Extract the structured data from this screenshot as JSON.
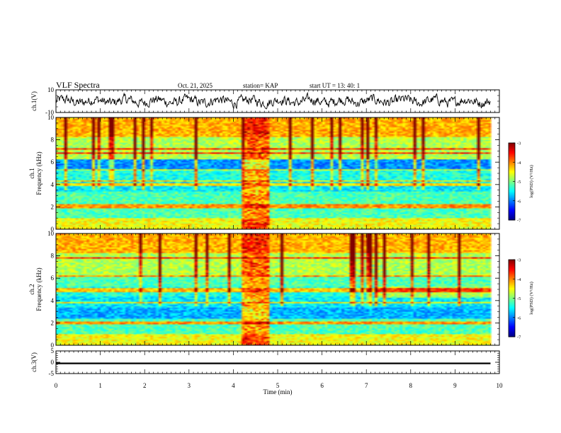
{
  "header": {
    "title": "VLF Spectra",
    "date": "Oct. 21, 2025",
    "station": "station= KAP",
    "start_ut": "start  UT  =   13: 40: 1"
  },
  "chart_data": [
    {
      "id": "ch1-waveform",
      "type": "line",
      "ylabel": "ch.1(V)",
      "ylim": [
        -10,
        10
      ],
      "yticks": [
        10,
        -10
      ],
      "xlim": [
        0,
        10
      ],
      "series": [
        {
          "name": "ch.1 waveform",
          "amplitude_range_V": [
            -8,
            8
          ]
        }
      ]
    },
    {
      "id": "ch1-spectrogram",
      "type": "heatmap",
      "ylabel_channel": "ch.1",
      "ylabel": "Frequency (kHz)",
      "ylim": [
        0,
        10
      ],
      "yticks": [
        0,
        2,
        4,
        6,
        8,
        10
      ],
      "xlim": [
        0,
        10
      ],
      "data_extent_min": 9.8,
      "burst_interval_min": [
        4.2,
        4.8
      ],
      "notable_lines_kHz": [
        2.0,
        2.2,
        4.0,
        4.3,
        5.3,
        6.8,
        7.2
      ],
      "colorbar": {
        "label": "log(PSD) (V²/Hz)",
        "range": [
          -7,
          -3
        ],
        "ticks": [
          -3,
          -4,
          -5,
          -6,
          -7
        ]
      }
    },
    {
      "id": "ch2-spectrogram",
      "type": "heatmap",
      "ylabel_channel": "ch.2",
      "ylabel": "Frequency (kHz)",
      "ylim": [
        0,
        10
      ],
      "yticks": [
        0,
        2,
        4,
        6,
        8,
        10
      ],
      "xlim": [
        0,
        10
      ],
      "data_extent_min": 9.8,
      "burst_interval_min": [
        4.2,
        4.8
      ],
      "notable_lines_kHz": [
        2.0,
        3.8,
        4.8,
        5.0,
        6.2,
        7.8
      ],
      "colorbar": {
        "label": "log(PSD) (V²/Hz)",
        "range": [
          -7,
          -3
        ],
        "ticks": [
          -3,
          -4,
          -5,
          -6,
          -7
        ]
      }
    },
    {
      "id": "ch3-waveform",
      "type": "line",
      "ylabel": "ch.3(V)",
      "ylim": [
        -5,
        5
      ],
      "yticks": [
        5,
        0,
        -5
      ],
      "xlim": [
        0,
        10
      ],
      "xlabel": "Time  (min)",
      "xticks": [
        0,
        1,
        2,
        3,
        4,
        5,
        6,
        7,
        8,
        9,
        10
      ],
      "series": [
        {
          "name": "ch.3 waveform",
          "level_V": -0.5,
          "band_V": 0.7
        }
      ]
    }
  ]
}
